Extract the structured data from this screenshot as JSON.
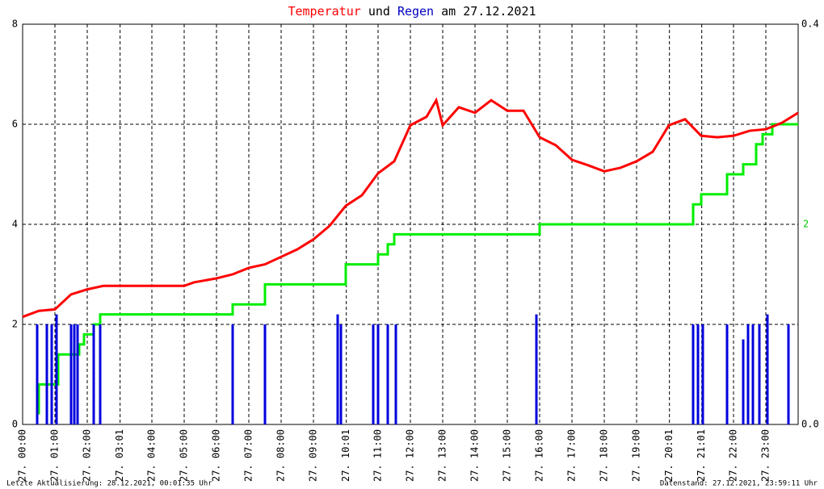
{
  "chart_data": {
    "type": "line",
    "title": [
      {
        "text": "Temperatur",
        "color": "#ff0000"
      },
      {
        "text": "und",
        "color": "#000000"
      },
      {
        "text": "Regen",
        "color": "#0000c0"
      },
      {
        "text": "am 27.12.2021",
        "color": "#000000"
      }
    ],
    "xlim": [
      0,
      24
    ],
    "xticks": [
      {
        "value": 0,
        "label": "27. 00:00"
      },
      {
        "value": 1,
        "label": "27. 01:00"
      },
      {
        "value": 2,
        "label": "27. 02:00"
      },
      {
        "value": 3.0167,
        "label": "27. 03:01"
      },
      {
        "value": 4,
        "label": "27. 04:00"
      },
      {
        "value": 5,
        "label": "27. 05:00"
      },
      {
        "value": 6,
        "label": "27. 06:00"
      },
      {
        "value": 7,
        "label": "27. 07:00"
      },
      {
        "value": 8,
        "label": "27. 08:00"
      },
      {
        "value": 9,
        "label": "27. 09:00"
      },
      {
        "value": 10.0167,
        "label": "27. 10:01"
      },
      {
        "value": 11,
        "label": "27. 11:00"
      },
      {
        "value": 12,
        "label": "27. 12:00"
      },
      {
        "value": 13,
        "label": "27. 13:00"
      },
      {
        "value": 14,
        "label": "27. 14:00"
      },
      {
        "value": 15,
        "label": "27. 15:00"
      },
      {
        "value": 16,
        "label": "27. 16:00"
      },
      {
        "value": 17,
        "label": "27. 17:00"
      },
      {
        "value": 18,
        "label": "27. 18:00"
      },
      {
        "value": 19,
        "label": "27. 19:00"
      },
      {
        "value": 20.0167,
        "label": "27. 20:01"
      },
      {
        "value": 21.0167,
        "label": "27. 21:01"
      },
      {
        "value": 22,
        "label": "27. 22:00"
      },
      {
        "value": 23,
        "label": "27. 23:00"
      }
    ],
    "ylim": [
      0,
      8
    ],
    "yticks": [
      0,
      2,
      4,
      6,
      8
    ],
    "y2lim": [
      0,
      0.4
    ],
    "y2ticks": [
      {
        "value": 0,
        "label": "0.0"
      },
      {
        "value": 0.4,
        "label": "0.4"
      }
    ],
    "y3lim": [
      0,
      4
    ],
    "y3ticks": [
      2
    ],
    "y3color": "#00cc00",
    "grid": true,
    "series": [
      {
        "name": "Temperatur",
        "color": "#ff0000",
        "render": "line",
        "x": [
          0,
          0.5,
          1,
          1.5,
          2,
          2.5,
          3,
          4,
          5,
          5.3,
          6,
          6.5,
          7,
          7.5,
          8,
          8.5,
          9,
          9.5,
          10,
          10.5,
          11,
          11.5,
          12,
          12.5,
          12.8,
          13,
          13.5,
          14,
          14.5,
          15,
          15.5,
          16,
          16.5,
          17,
          17.5,
          18,
          18.5,
          19,
          19.5,
          20,
          20.5,
          21,
          21.5,
          22,
          22.5,
          23,
          23.5,
          24
        ],
        "values": [
          2.15,
          2.27,
          2.3,
          2.6,
          2.7,
          2.77,
          2.77,
          2.77,
          2.77,
          2.84,
          2.92,
          3.0,
          3.13,
          3.2,
          3.35,
          3.5,
          3.7,
          3.97,
          4.37,
          4.58,
          5.02,
          5.26,
          5.98,
          6.15,
          6.48,
          5.98,
          6.34,
          6.23,
          6.48,
          6.27,
          6.27,
          5.74,
          5.58,
          5.29,
          5.18,
          5.06,
          5.13,
          5.26,
          5.45,
          5.98,
          6.1,
          5.77,
          5.74,
          5.77,
          5.87,
          5.9,
          6.03,
          6.23
        ]
      },
      {
        "name": "Regen",
        "color": "#0000dd",
        "render": "bars",
        "axis": "y2",
        "x": [
          0.45,
          0.75,
          0.9,
          1.05,
          1.5,
          1.6,
          1.7,
          2.2,
          2.4,
          6.5,
          7.5,
          9.75,
          9.85,
          10.85,
          11.0,
          11.3,
          11.55,
          15.9,
          20.75,
          20.9,
          21.05,
          21.8,
          22.3,
          22.45,
          22.6,
          22.8,
          23.05,
          23.7
        ],
        "values": [
          0.1,
          0.1,
          0.1,
          0.11,
          0.1,
          0.1,
          0.1,
          0.1,
          0.1,
          0.1,
          0.1,
          0.11,
          0.1,
          0.1,
          0.1,
          0.1,
          0.1,
          0.11,
          0.1,
          0.1,
          0.1,
          0.1,
          0.085,
          0.1,
          0.1,
          0.1,
          0.11,
          0.1
        ]
      },
      {
        "color": "#00ee00",
        "render": "step",
        "axis": "y3",
        "x": [
          0.5,
          1.1,
          1.75,
          1.9,
          2.2,
          2.4,
          6.5,
          7.5,
          10,
          11,
          11.3,
          11.5,
          16,
          20.75,
          21.0,
          21.8,
          22.3,
          22.7,
          22.9,
          23.2,
          23.7,
          24
        ],
        "values": [
          0.1,
          0.4,
          0.7,
          0.8,
          0.9,
          1.0,
          1.1,
          1.2,
          1.4,
          1.6,
          1.7,
          1.8,
          1.9,
          2.0,
          2.2,
          2.3,
          2.5,
          2.6,
          2.8,
          2.9,
          3.0,
          3.0
        ]
      }
    ],
    "footer_left": "Letzte Aktualisierung: 28.12.2021, 00:01:35 Uhr",
    "footer_right": "Datenstand: 27.12.2021, 23:59:11 Uhr"
  }
}
